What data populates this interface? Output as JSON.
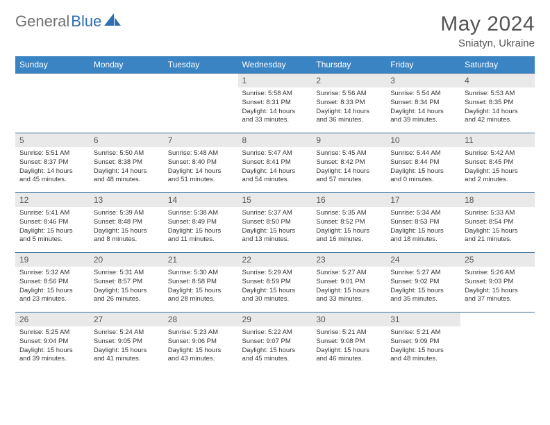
{
  "brand": {
    "word1": "General",
    "word2": "Blue"
  },
  "title": "May 2024",
  "location": "Sniatyn, Ukraine",
  "colors": {
    "header_bg": "#3b84c4",
    "row_border": "#3b6fa0",
    "daynum_bg": "#e9e9e9",
    "brand_gray": "#707070",
    "brand_blue": "#2f6fb0"
  },
  "weekdays": [
    "Sunday",
    "Monday",
    "Tuesday",
    "Wednesday",
    "Thursday",
    "Friday",
    "Saturday"
  ],
  "weeks": [
    [
      {
        "empty": true
      },
      {
        "empty": true
      },
      {
        "empty": true
      },
      {
        "n": "1",
        "sr": "5:58 AM",
        "ss": "8:31 PM",
        "dl": "14 hours and 33 minutes."
      },
      {
        "n": "2",
        "sr": "5:56 AM",
        "ss": "8:33 PM",
        "dl": "14 hours and 36 minutes."
      },
      {
        "n": "3",
        "sr": "5:54 AM",
        "ss": "8:34 PM",
        "dl": "14 hours and 39 minutes."
      },
      {
        "n": "4",
        "sr": "5:53 AM",
        "ss": "8:35 PM",
        "dl": "14 hours and 42 minutes."
      }
    ],
    [
      {
        "n": "5",
        "sr": "5:51 AM",
        "ss": "8:37 PM",
        "dl": "14 hours and 45 minutes."
      },
      {
        "n": "6",
        "sr": "5:50 AM",
        "ss": "8:38 PM",
        "dl": "14 hours and 48 minutes."
      },
      {
        "n": "7",
        "sr": "5:48 AM",
        "ss": "8:40 PM",
        "dl": "14 hours and 51 minutes."
      },
      {
        "n": "8",
        "sr": "5:47 AM",
        "ss": "8:41 PM",
        "dl": "14 hours and 54 minutes."
      },
      {
        "n": "9",
        "sr": "5:45 AM",
        "ss": "8:42 PM",
        "dl": "14 hours and 57 minutes."
      },
      {
        "n": "10",
        "sr": "5:44 AM",
        "ss": "8:44 PM",
        "dl": "15 hours and 0 minutes."
      },
      {
        "n": "11",
        "sr": "5:42 AM",
        "ss": "8:45 PM",
        "dl": "15 hours and 2 minutes."
      }
    ],
    [
      {
        "n": "12",
        "sr": "5:41 AM",
        "ss": "8:46 PM",
        "dl": "15 hours and 5 minutes."
      },
      {
        "n": "13",
        "sr": "5:39 AM",
        "ss": "8:48 PM",
        "dl": "15 hours and 8 minutes."
      },
      {
        "n": "14",
        "sr": "5:38 AM",
        "ss": "8:49 PM",
        "dl": "15 hours and 11 minutes."
      },
      {
        "n": "15",
        "sr": "5:37 AM",
        "ss": "8:50 PM",
        "dl": "15 hours and 13 minutes."
      },
      {
        "n": "16",
        "sr": "5:35 AM",
        "ss": "8:52 PM",
        "dl": "15 hours and 16 minutes."
      },
      {
        "n": "17",
        "sr": "5:34 AM",
        "ss": "8:53 PM",
        "dl": "15 hours and 18 minutes."
      },
      {
        "n": "18",
        "sr": "5:33 AM",
        "ss": "8:54 PM",
        "dl": "15 hours and 21 minutes."
      }
    ],
    [
      {
        "n": "19",
        "sr": "5:32 AM",
        "ss": "8:56 PM",
        "dl": "15 hours and 23 minutes."
      },
      {
        "n": "20",
        "sr": "5:31 AM",
        "ss": "8:57 PM",
        "dl": "15 hours and 26 minutes."
      },
      {
        "n": "21",
        "sr": "5:30 AM",
        "ss": "8:58 PM",
        "dl": "15 hours and 28 minutes."
      },
      {
        "n": "22",
        "sr": "5:29 AM",
        "ss": "8:59 PM",
        "dl": "15 hours and 30 minutes."
      },
      {
        "n": "23",
        "sr": "5:27 AM",
        "ss": "9:01 PM",
        "dl": "15 hours and 33 minutes."
      },
      {
        "n": "24",
        "sr": "5:27 AM",
        "ss": "9:02 PM",
        "dl": "15 hours and 35 minutes."
      },
      {
        "n": "25",
        "sr": "5:26 AM",
        "ss": "9:03 PM",
        "dl": "15 hours and 37 minutes."
      }
    ],
    [
      {
        "n": "26",
        "sr": "5:25 AM",
        "ss": "9:04 PM",
        "dl": "15 hours and 39 minutes."
      },
      {
        "n": "27",
        "sr": "5:24 AM",
        "ss": "9:05 PM",
        "dl": "15 hours and 41 minutes."
      },
      {
        "n": "28",
        "sr": "5:23 AM",
        "ss": "9:06 PM",
        "dl": "15 hours and 43 minutes."
      },
      {
        "n": "29",
        "sr": "5:22 AM",
        "ss": "9:07 PM",
        "dl": "15 hours and 45 minutes."
      },
      {
        "n": "30",
        "sr": "5:21 AM",
        "ss": "9:08 PM",
        "dl": "15 hours and 46 minutes."
      },
      {
        "n": "31",
        "sr": "5:21 AM",
        "ss": "9:09 PM",
        "dl": "15 hours and 48 minutes."
      },
      {
        "empty": true
      }
    ]
  ],
  "labels": {
    "sunrise": "Sunrise:",
    "sunset": "Sunset:",
    "daylight": "Daylight:"
  }
}
